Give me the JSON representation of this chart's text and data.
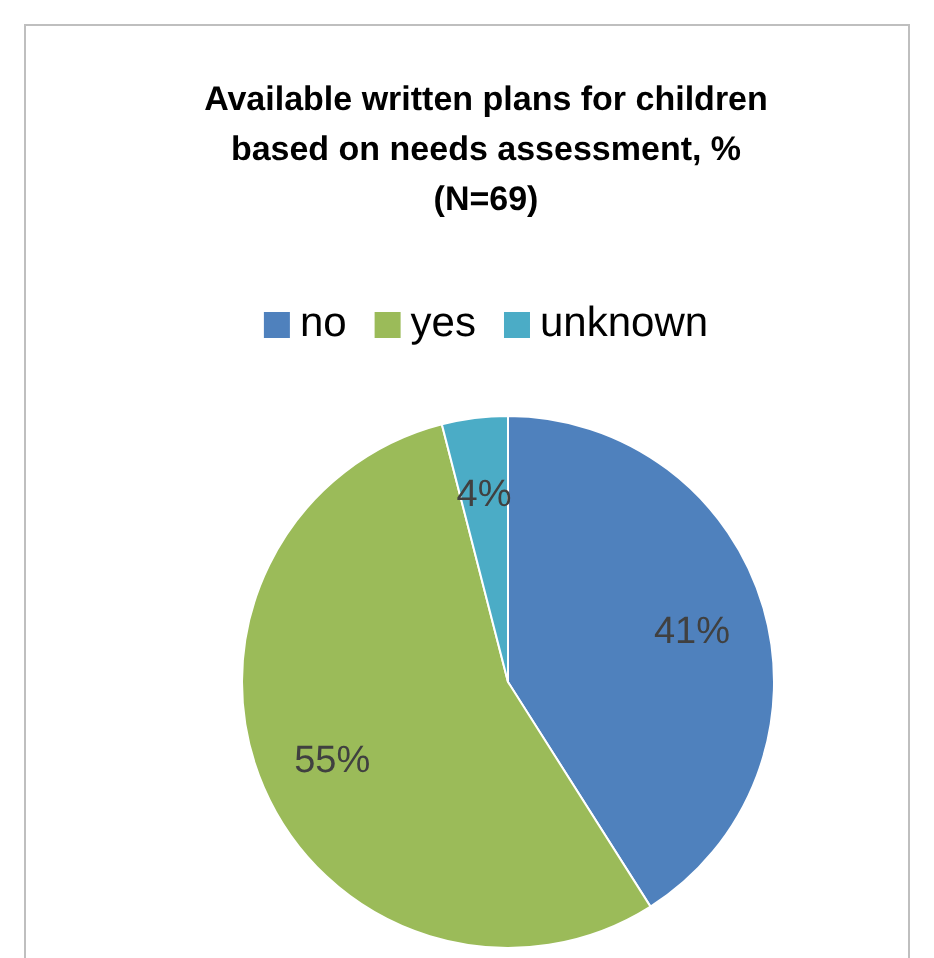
{
  "chart_data": {
    "type": "pie",
    "title": "Available written plans for children based on needs assessment, % (N=69)",
    "categories": [
      "no",
      "yes",
      "unknown"
    ],
    "values": [
      41,
      55,
      4
    ],
    "colors": [
      "#4f81bd",
      "#9bbb59",
      "#4bacc6"
    ],
    "value_labels": [
      "41%",
      "55%",
      "4%"
    ],
    "legend": "top"
  }
}
